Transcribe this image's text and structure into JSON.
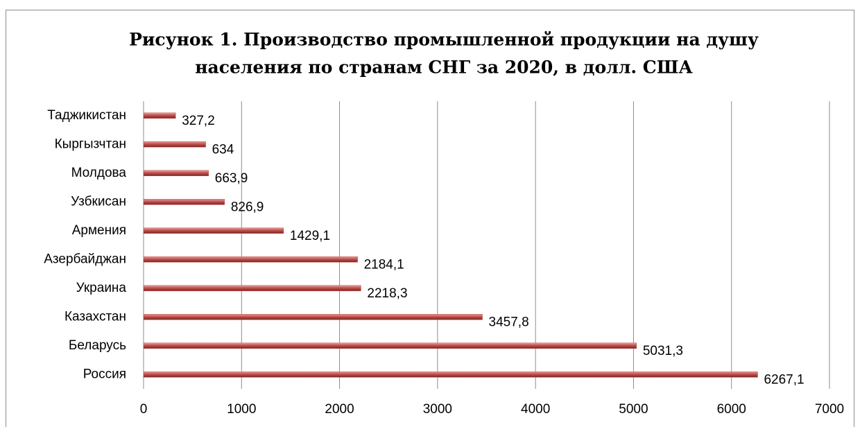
{
  "chart_data": {
    "type": "bar",
    "orientation": "horizontal",
    "title": [
      "Рисунок 1. Производство промышленной продукции на душу",
      "населения по странам СНГ за 2020, в долл. США"
    ],
    "categories": [
      "Таджикистан",
      "Кыргызчтан",
      "Молдова",
      "Узбкисан",
      "Армения",
      "Азербайджан",
      "Украина",
      "Казахстан",
      "Беларусь",
      "Россия"
    ],
    "values": [
      327.2,
      634,
      663.9,
      826.9,
      1429.1,
      2184.1,
      2218.3,
      3457.8,
      5031.3,
      6267.1
    ],
    "value_labels": [
      "327,2",
      "634",
      "663,9",
      "826,9",
      "1429,1",
      "2184,1",
      "2218,3",
      "3457,8",
      "5031,3",
      "6267,1"
    ],
    "color": "#c0504d",
    "xlim": [
      0,
      7000
    ],
    "xticks": [
      0,
      1000,
      2000,
      3000,
      4000,
      5000,
      6000,
      7000
    ],
    "grid": true
  }
}
